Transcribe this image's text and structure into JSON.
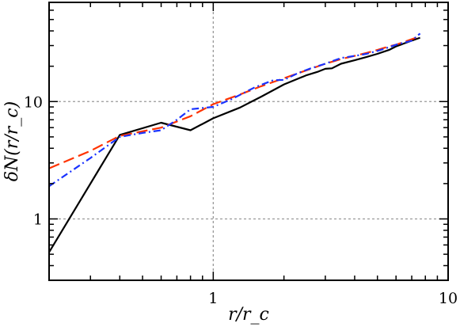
{
  "chart_data": {
    "type": "line",
    "xlabel": "r/r_c",
    "ylabel": "δN(r/r_c)",
    "xscale": "log",
    "yscale": "log",
    "xlim": [
      0.2,
      10
    ],
    "ylim": [
      0.3,
      70
    ],
    "grid": true,
    "x_ticks": [
      {
        "value": 1,
        "label": "1"
      },
      {
        "value": 10,
        "label": "10"
      }
    ],
    "y_ticks": [
      {
        "value": 1,
        "label": "1"
      },
      {
        "value": 10,
        "label": "10"
      }
    ],
    "series": [
      {
        "color": "#000000",
        "dash": "solid",
        "points": [
          [
            0.2,
            0.52
          ],
          [
            0.4,
            5.2
          ],
          [
            0.6,
            6.6
          ],
          [
            0.8,
            5.7
          ],
          [
            1.0,
            7.2
          ],
          [
            1.3,
            8.9
          ],
          [
            1.6,
            11.0
          ],
          [
            2.0,
            14.0
          ],
          [
            2.5,
            16.8
          ],
          [
            2.8,
            18.0
          ],
          [
            3.0,
            19.0
          ],
          [
            3.2,
            19.2
          ],
          [
            3.5,
            21.0
          ],
          [
            4.0,
            22.5
          ],
          [
            4.5,
            24.0
          ],
          [
            5.0,
            25.5
          ],
          [
            5.6,
            27.5
          ],
          [
            6.0,
            29.5
          ],
          [
            7.0,
            33.0
          ],
          [
            7.6,
            35.0
          ]
        ]
      },
      {
        "color": "#ff3300",
        "dash": "dashed",
        "points": [
          [
            0.2,
            2.7
          ],
          [
            0.3,
            3.8
          ],
          [
            0.4,
            5.1
          ],
          [
            0.6,
            6.0
          ],
          [
            0.8,
            7.5
          ],
          [
            1.0,
            9.5
          ],
          [
            1.3,
            11.5
          ],
          [
            1.6,
            13.5
          ],
          [
            2.0,
            15.8
          ],
          [
            2.5,
            18.5
          ],
          [
            3.0,
            21.0
          ],
          [
            3.5,
            23.0
          ],
          [
            4.0,
            24.5
          ],
          [
            4.5,
            26.0
          ],
          [
            5.0,
            27.5
          ],
          [
            5.6,
            29.5
          ],
          [
            6.0,
            30.5
          ],
          [
            7.0,
            34.0
          ],
          [
            7.6,
            36.0
          ]
        ]
      },
      {
        "color": "#1a33ff",
        "dash": "dash-dot",
        "points": [
          [
            0.2,
            1.9
          ],
          [
            0.3,
            3.3
          ],
          [
            0.4,
            5.0
          ],
          [
            0.5,
            5.4
          ],
          [
            0.6,
            5.7
          ],
          [
            0.7,
            7.0
          ],
          [
            0.8,
            8.6
          ],
          [
            1.0,
            9.0
          ],
          [
            1.2,
            10.5
          ],
          [
            1.5,
            13.2
          ],
          [
            1.8,
            15.2
          ],
          [
            2.0,
            15.3
          ],
          [
            2.3,
            17.5
          ],
          [
            2.6,
            19.2
          ],
          [
            3.0,
            21.0
          ],
          [
            3.5,
            23.5
          ],
          [
            4.0,
            24.5
          ],
          [
            4.5,
            25.5
          ],
          [
            5.0,
            27.0
          ],
          [
            5.6,
            29.0
          ],
          [
            6.0,
            30.5
          ],
          [
            7.0,
            33.0
          ],
          [
            7.6,
            38.0
          ]
        ]
      }
    ]
  }
}
